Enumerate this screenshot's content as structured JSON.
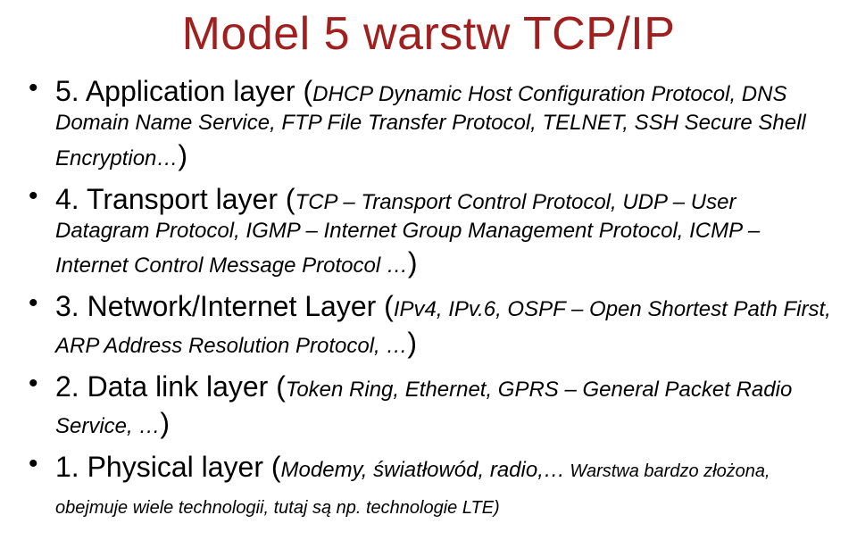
{
  "colors": {
    "title": "#a02020",
    "text": "#000000",
    "bullet": "#000000",
    "background": "#ffffff"
  },
  "typography": {
    "title_fontsize": 52,
    "layer_main_fontsize": 32,
    "layer_sub_fontsize": 24,
    "layer_sub2_fontsize": 20,
    "font_family": "Arial"
  },
  "title": "Model 5 warstw TCP/IP",
  "layers": [
    {
      "main": "5. Application layer (",
      "sub": "DHCP Dynamic Host Configuration Protocol, DNS Domain Name Service, FTP File Transfer Protocol, TELNET, SSH Secure Shell Encryption…",
      "close": ")"
    },
    {
      "main": "4. Transport layer (",
      "sub": "TCP – Transport Control Protocol, UDP – User Datagram Protocol, IGMP – Internet Group Management Protocol, ICMP – Internet Control Message Protocol …",
      "close": ")"
    },
    {
      "main": "3. Network/Internet Layer (",
      "sub": "IPv4, IPv.6, OSPF – Open Shortest Path First, ARP Address Resolution Protocol, …",
      "close": ")"
    },
    {
      "main": "2. Data link layer (",
      "sub": "Token Ring, Ethernet, GPRS – General Packet Radio Service, …",
      "close": ")"
    },
    {
      "main": "1. Physical layer (",
      "sub": "Modemy, światłowód, radio,…",
      "sub2": " Warstwa bardzo złożona, obejmuje wiele technologii, tutaj są np. technologie LTE)",
      "close": ""
    }
  ]
}
